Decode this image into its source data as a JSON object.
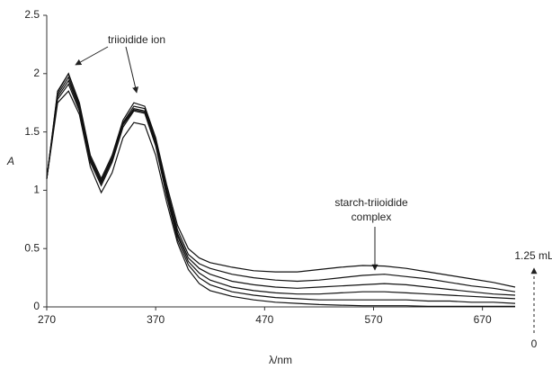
{
  "chart_data": {
    "type": "line",
    "x_label": "λ/nm",
    "y_label": "A",
    "xlim": [
      270,
      700
    ],
    "ylim": [
      0,
      2.5
    ],
    "xticks": [
      270,
      370,
      470,
      570,
      670
    ],
    "yticks": [
      0,
      0.5,
      1,
      1.5,
      2,
      2.5
    ],
    "grid": false,
    "annotations": {
      "peak_label": "triioidide ion",
      "complex_label_line1": "starch-triioidide",
      "complex_label_line2": "complex",
      "volume_top": "1.25 mL",
      "volume_bottom": "0"
    },
    "x": [
      270,
      280,
      290,
      300,
      310,
      320,
      330,
      340,
      350,
      360,
      370,
      380,
      390,
      400,
      410,
      420,
      440,
      460,
      480,
      500,
      520,
      540,
      560,
      580,
      600,
      620,
      640,
      660,
      680,
      700
    ],
    "series": [
      {
        "color": "#111111",
        "values": [
          1.1,
          1.85,
          2.0,
          1.75,
          1.3,
          1.1,
          1.3,
          1.6,
          1.75,
          1.72,
          1.45,
          1.05,
          0.7,
          0.5,
          0.42,
          0.38,
          0.34,
          0.31,
          0.3,
          0.3,
          0.32,
          0.34,
          0.355,
          0.35,
          0.33,
          0.3,
          0.27,
          0.24,
          0.21,
          0.17
        ]
      },
      {
        "color": "#111111",
        "values": [
          1.1,
          1.84,
          2.0,
          1.73,
          1.28,
          1.08,
          1.28,
          1.58,
          1.72,
          1.7,
          1.43,
          1.02,
          0.66,
          0.45,
          0.37,
          0.33,
          0.28,
          0.25,
          0.23,
          0.22,
          0.23,
          0.25,
          0.27,
          0.28,
          0.26,
          0.24,
          0.21,
          0.18,
          0.16,
          0.13
        ]
      },
      {
        "color": "#111111",
        "values": [
          1.1,
          1.82,
          1.97,
          1.71,
          1.27,
          1.07,
          1.27,
          1.57,
          1.7,
          1.68,
          1.41,
          1.0,
          0.63,
          0.42,
          0.33,
          0.28,
          0.22,
          0.19,
          0.17,
          0.16,
          0.17,
          0.18,
          0.19,
          0.2,
          0.19,
          0.17,
          0.15,
          0.13,
          0.11,
          0.1
        ]
      },
      {
        "color": "#111111",
        "values": [
          1.1,
          1.8,
          1.94,
          1.7,
          1.26,
          1.06,
          1.26,
          1.56,
          1.69,
          1.67,
          1.4,
          0.98,
          0.61,
          0.39,
          0.29,
          0.23,
          0.17,
          0.14,
          0.12,
          0.11,
          0.11,
          0.12,
          0.13,
          0.13,
          0.12,
          0.11,
          0.1,
          0.09,
          0.08,
          0.07
        ]
      },
      {
        "color": "#111111",
        "values": [
          1.1,
          1.78,
          1.91,
          1.68,
          1.24,
          1.04,
          1.24,
          1.54,
          1.68,
          1.66,
          1.38,
          0.95,
          0.58,
          0.36,
          0.25,
          0.19,
          0.13,
          0.1,
          0.08,
          0.07,
          0.06,
          0.06,
          0.06,
          0.06,
          0.06,
          0.05,
          0.05,
          0.04,
          0.04,
          0.03
        ]
      },
      {
        "color": "#111111",
        "values": [
          1.1,
          1.75,
          1.85,
          1.65,
          1.2,
          0.98,
          1.15,
          1.45,
          1.58,
          1.56,
          1.3,
          0.9,
          0.55,
          0.32,
          0.2,
          0.14,
          0.09,
          0.06,
          0.04,
          0.03,
          0.02,
          0.015,
          0.01,
          0.01,
          0.01,
          0.005,
          0.005,
          0.005,
          0.005,
          0.005
        ]
      }
    ]
  }
}
